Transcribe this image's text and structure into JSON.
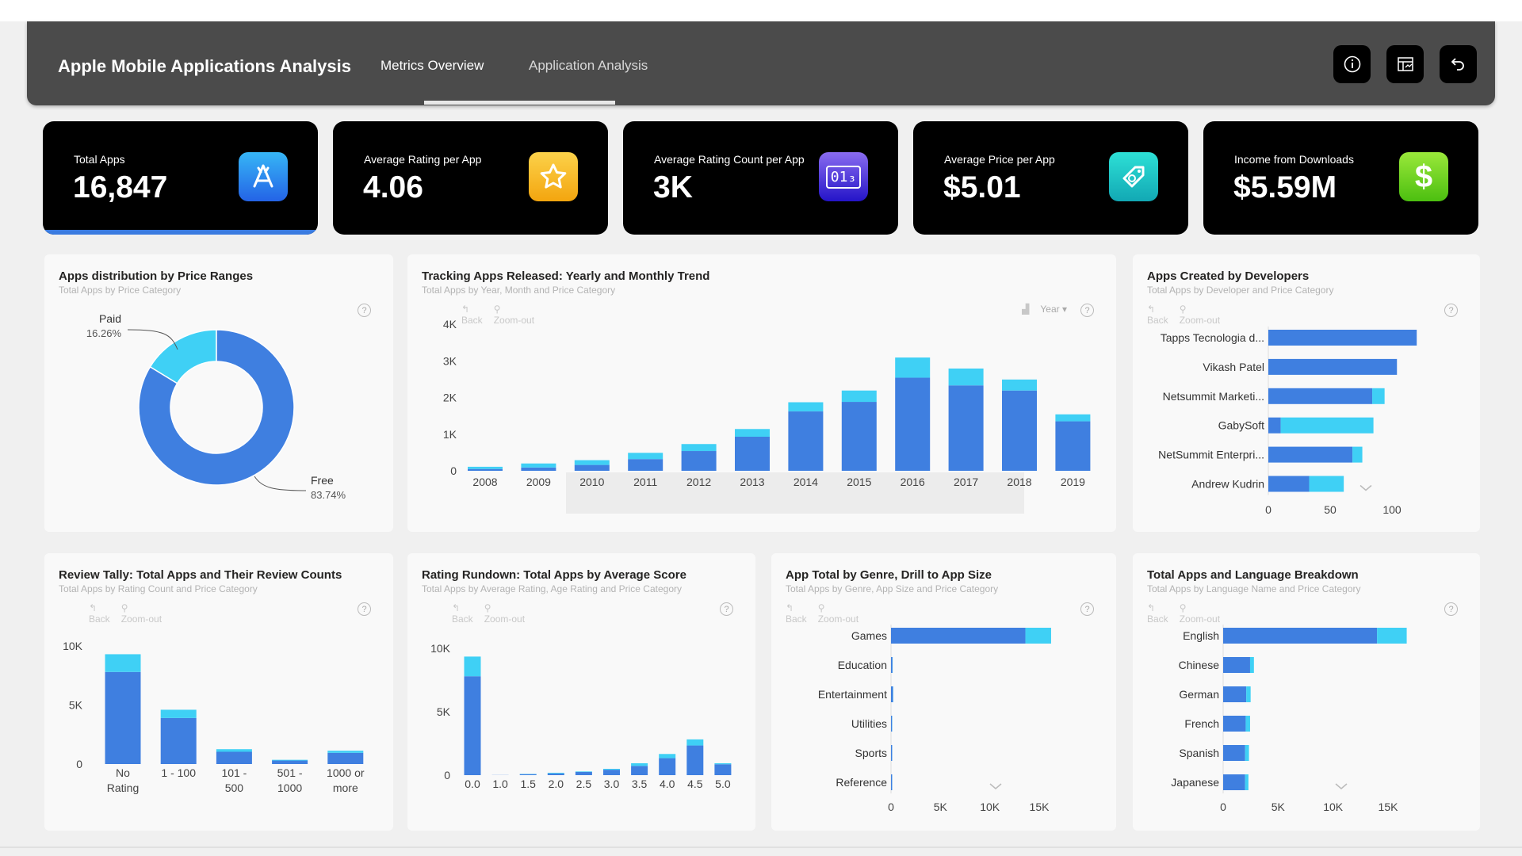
{
  "header": {
    "title": "Apple Mobile Applications Analysis",
    "tabs": [
      {
        "label": "Metrics Overview",
        "active": true
      },
      {
        "label": "Application Analysis",
        "active": false
      }
    ],
    "buttons": [
      "info-icon",
      "report-icon",
      "back-arrow-icon"
    ]
  },
  "kpis": [
    {
      "label": "Total Apps",
      "value": "16,847",
      "icon": "app-store-icon",
      "color": "#2f8cf0"
    },
    {
      "label": "Average Rating per App",
      "value": "4.06",
      "icon": "star-icon",
      "color": "#f6b81c"
    },
    {
      "label": "Average Rating Count per App",
      "value": "3K",
      "icon": "counter-icon",
      "color": "#5b3de0",
      "icon_text": "01₃"
    },
    {
      "label": "Average Price per App",
      "value": "$5.01",
      "icon": "price-tag-icon",
      "color": "#1ec9c9"
    },
    {
      "label": "Income from Downloads",
      "value": "$5.59M",
      "icon": "dollar-icon",
      "color": "#6ed41e",
      "icon_text": "$"
    }
  ],
  "toolbar": {
    "back": "Back",
    "zoom_out": "Zoom-out",
    "year_dropdown": "Year",
    "help": "?"
  },
  "colors": {
    "free": "#3f7fe0",
    "paid": "#3fd0f5"
  },
  "chart_data": [
    {
      "id": "price",
      "type": "pie",
      "title": "Apps distribution by Price Ranges",
      "subtitle": "Total Apps by Price Category",
      "slices": [
        {
          "name": "Paid",
          "value": 16.26,
          "label": "16.26%"
        },
        {
          "name": "Free",
          "value": 83.74,
          "label": "83.74%"
        }
      ]
    },
    {
      "id": "trend",
      "type": "bar",
      "title": "Tracking Apps Released: Yearly and Monthly Trend",
      "subtitle": "Total Apps by Year, Month and Price Category",
      "categories": [
        "2008",
        "2009",
        "2010",
        "2011",
        "2012",
        "2013",
        "2014",
        "2015",
        "2016",
        "2017",
        "2018",
        "2019"
      ],
      "series": [
        {
          "name": "Free",
          "values": [
            50,
            90,
            160,
            320,
            540,
            930,
            1620,
            1880,
            2540,
            2330,
            2190,
            1350
          ]
        },
        {
          "name": "Paid",
          "values": [
            60,
            110,
            130,
            170,
            190,
            210,
            250,
            310,
            550,
            460,
            300,
            190
          ]
        }
      ],
      "yticks": [
        0,
        1000,
        2000,
        3000,
        4000
      ],
      "ytick_labels": [
        "0",
        "1K",
        "2K",
        "3K",
        "4K"
      ],
      "ylim": [
        0,
        4000
      ]
    },
    {
      "id": "dev",
      "type": "bar",
      "orientation": "horizontal",
      "title": "Apps Created by Developers",
      "subtitle": "Total Apps by Developer and Price Category",
      "categories": [
        "Tapps Tecnologia d...",
        "Vikash Patel",
        "Netsummit Marketi...",
        "GabySoft",
        "NetSummit Enterpri...",
        "Andrew Kudrin"
      ],
      "series": [
        {
          "name": "Free",
          "values": [
            120,
            104,
            84,
            10,
            68,
            33
          ]
        },
        {
          "name": "Paid",
          "values": [
            0,
            0,
            10,
            75,
            8,
            28
          ]
        }
      ],
      "xticks": [
        0,
        50,
        100
      ],
      "xtick_labels": [
        "0",
        "50",
        "100"
      ]
    },
    {
      "id": "review",
      "type": "bar",
      "title": "Review Tally: Total Apps and Their Review Counts",
      "subtitle": "Total Apps by Rating Count and Price Category",
      "categories": [
        [
          "No",
          "Rating"
        ],
        [
          "1 - 100",
          ""
        ],
        [
          "101 -",
          "500"
        ],
        [
          "501 -",
          "1000"
        ],
        [
          "1000 or",
          "more"
        ]
      ],
      "series": [
        {
          "name": "Free",
          "values": [
            7800,
            3900,
            1040,
            300,
            950
          ]
        },
        {
          "name": "Paid",
          "values": [
            1500,
            700,
            220,
            60,
            180
          ]
        }
      ],
      "yticks": [
        0,
        5000,
        10000
      ],
      "ytick_labels": [
        "0",
        "5K",
        "10K"
      ],
      "ylim": [
        0,
        10000
      ]
    },
    {
      "id": "rating",
      "type": "bar",
      "title": "Rating Rundown: Total Apps by Average Score",
      "subtitle": "Total Apps by Average Rating, Age Rating and Price Category",
      "categories": [
        "0.0",
        "1.0",
        "1.5",
        "2.0",
        "2.5",
        "3.0",
        "3.5",
        "4.0",
        "4.5",
        "5.0"
      ],
      "series": [
        {
          "name": "Free",
          "values": [
            7800,
            10,
            80,
            140,
            250,
            430,
            730,
            1340,
            2340,
            860
          ]
        },
        {
          "name": "Paid",
          "values": [
            1550,
            0,
            20,
            50,
            40,
            70,
            210,
            330,
            480,
            80
          ]
        }
      ],
      "yticks": [
        0,
        5000,
        10000
      ],
      "ytick_labels": [
        "0",
        "5K",
        "10K"
      ],
      "ylim": [
        0,
        10000
      ]
    },
    {
      "id": "genre",
      "type": "bar",
      "orientation": "horizontal",
      "title": "App Total by Genre, Drill to App Size",
      "subtitle": "Total Apps by Genre, App Size and Price Category",
      "categories": [
        "Games",
        "Education",
        "Entertainment",
        "Utilities",
        "Sports",
        "Reference"
      ],
      "series": [
        {
          "name": "Free",
          "values": [
            13600,
            150,
            200,
            100,
            80,
            80
          ]
        },
        {
          "name": "Paid",
          "values": [
            2600,
            20,
            20,
            20,
            10,
            10
          ]
        }
      ],
      "xticks": [
        0,
        5000,
        10000,
        15000
      ],
      "xtick_labels": [
        "0",
        "5K",
        "10K",
        "15K"
      ]
    },
    {
      "id": "lang",
      "type": "bar",
      "orientation": "horizontal",
      "title": "Total Apps and Language Breakdown",
      "subtitle": "Total Apps by Language Name and Price Category",
      "categories": [
        "English",
        "Chinese",
        "German",
        "French",
        "Spanish",
        "Japanese"
      ],
      "series": [
        {
          "name": "Free",
          "values": [
            14000,
            2450,
            2100,
            2050,
            2000,
            2000
          ]
        },
        {
          "name": "Paid",
          "values": [
            2700,
            350,
            400,
            400,
            350,
            300
          ]
        }
      ],
      "xticks": [
        0,
        5000,
        10000,
        15000
      ],
      "xtick_labels": [
        "0",
        "5K",
        "10K",
        "15K"
      ]
    }
  ]
}
